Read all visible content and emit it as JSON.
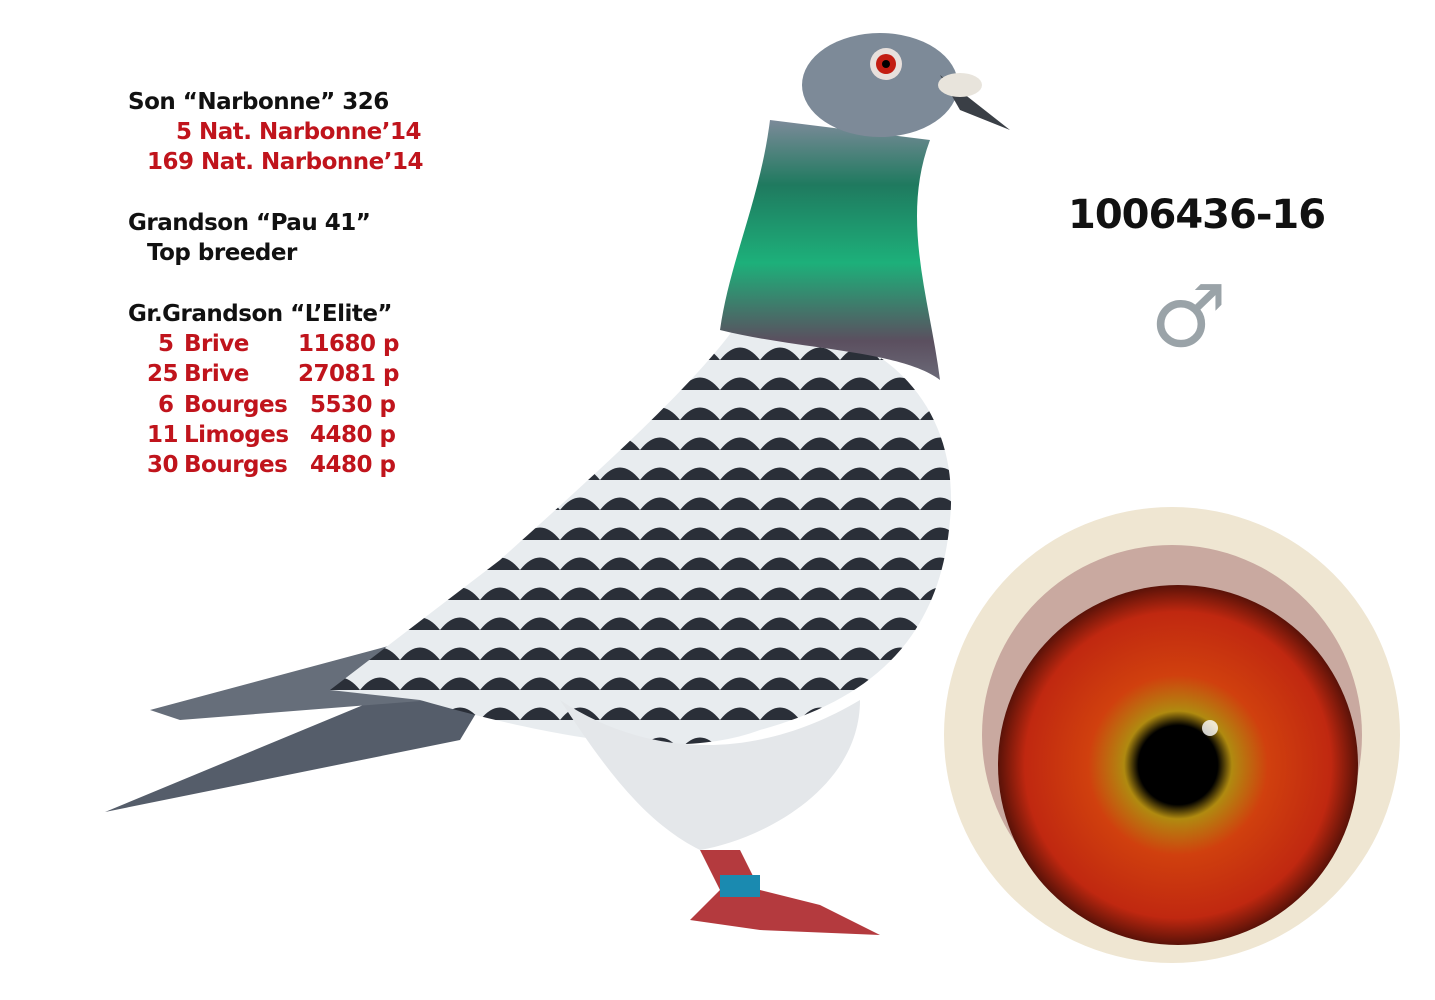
{
  "pedigree": {
    "son": {
      "title": "Son “Narbonne” 326",
      "results": [
        "5 Nat. Narbonne’14",
        "169 Nat. Narbonne’14"
      ]
    },
    "grandson": {
      "title": "Grandson “Pau 41”",
      "note": "Top breeder"
    },
    "great_grandson": {
      "title": "Gr.Grandson “L’Elite”",
      "results": [
        {
          "place": "5",
          "race": "Brive",
          "birds": "11680 p"
        },
        {
          "place": "25",
          "race": "Brive",
          "birds": "27081 p"
        },
        {
          "place": "6",
          "race": "Bourges",
          "birds": "5530 p"
        },
        {
          "place": "11",
          "race": "Limoges",
          "birds": "4480 p"
        },
        {
          "place": "30",
          "race": "Bourges",
          "birds": "4480 p"
        }
      ]
    }
  },
  "ring_number": "1006436-16",
  "sex_symbol": "♂",
  "colors": {
    "accent_red": "#c0141c",
    "text": "#111111",
    "symbol_grey": "#9aa3a8"
  }
}
